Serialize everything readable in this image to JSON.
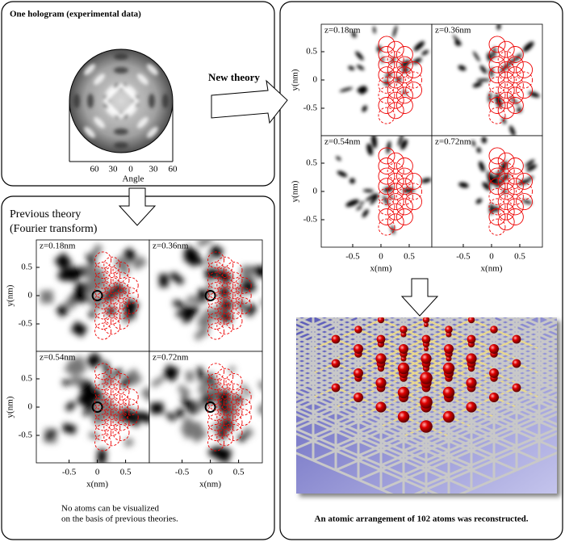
{
  "hologram": {
    "title": "One hologram (experimental data)",
    "axis_label": "Angle",
    "ticks": [
      "60",
      "30",
      "0",
      "30",
      "60"
    ]
  },
  "axes": {
    "x_ticks": [
      "-0.5",
      "0",
      "0.5"
    ],
    "y_ticks": [
      "0.5",
      "0",
      "-0.5"
    ],
    "x_label": "x(nm)",
    "y_label": "y(nm)"
  },
  "new_theory": {
    "label": "New theory",
    "panels": [
      "z=0.18nm",
      "z=0.36nm",
      "z=0.54nm",
      "z=0.72nm"
    ]
  },
  "previous_theory": {
    "title": [
      "Previous theory",
      "(Fourier transform)"
    ],
    "panels": [
      "z=0.18nm",
      "z=0.36nm",
      "z=0.54nm",
      "z=0.72nm"
    ],
    "caption": [
      "No atoms can be visualized",
      "on the basis of previous theories."
    ]
  },
  "reconstruction": {
    "caption": "An atomic arrangement of 102 atoms was reconstructed."
  }
}
